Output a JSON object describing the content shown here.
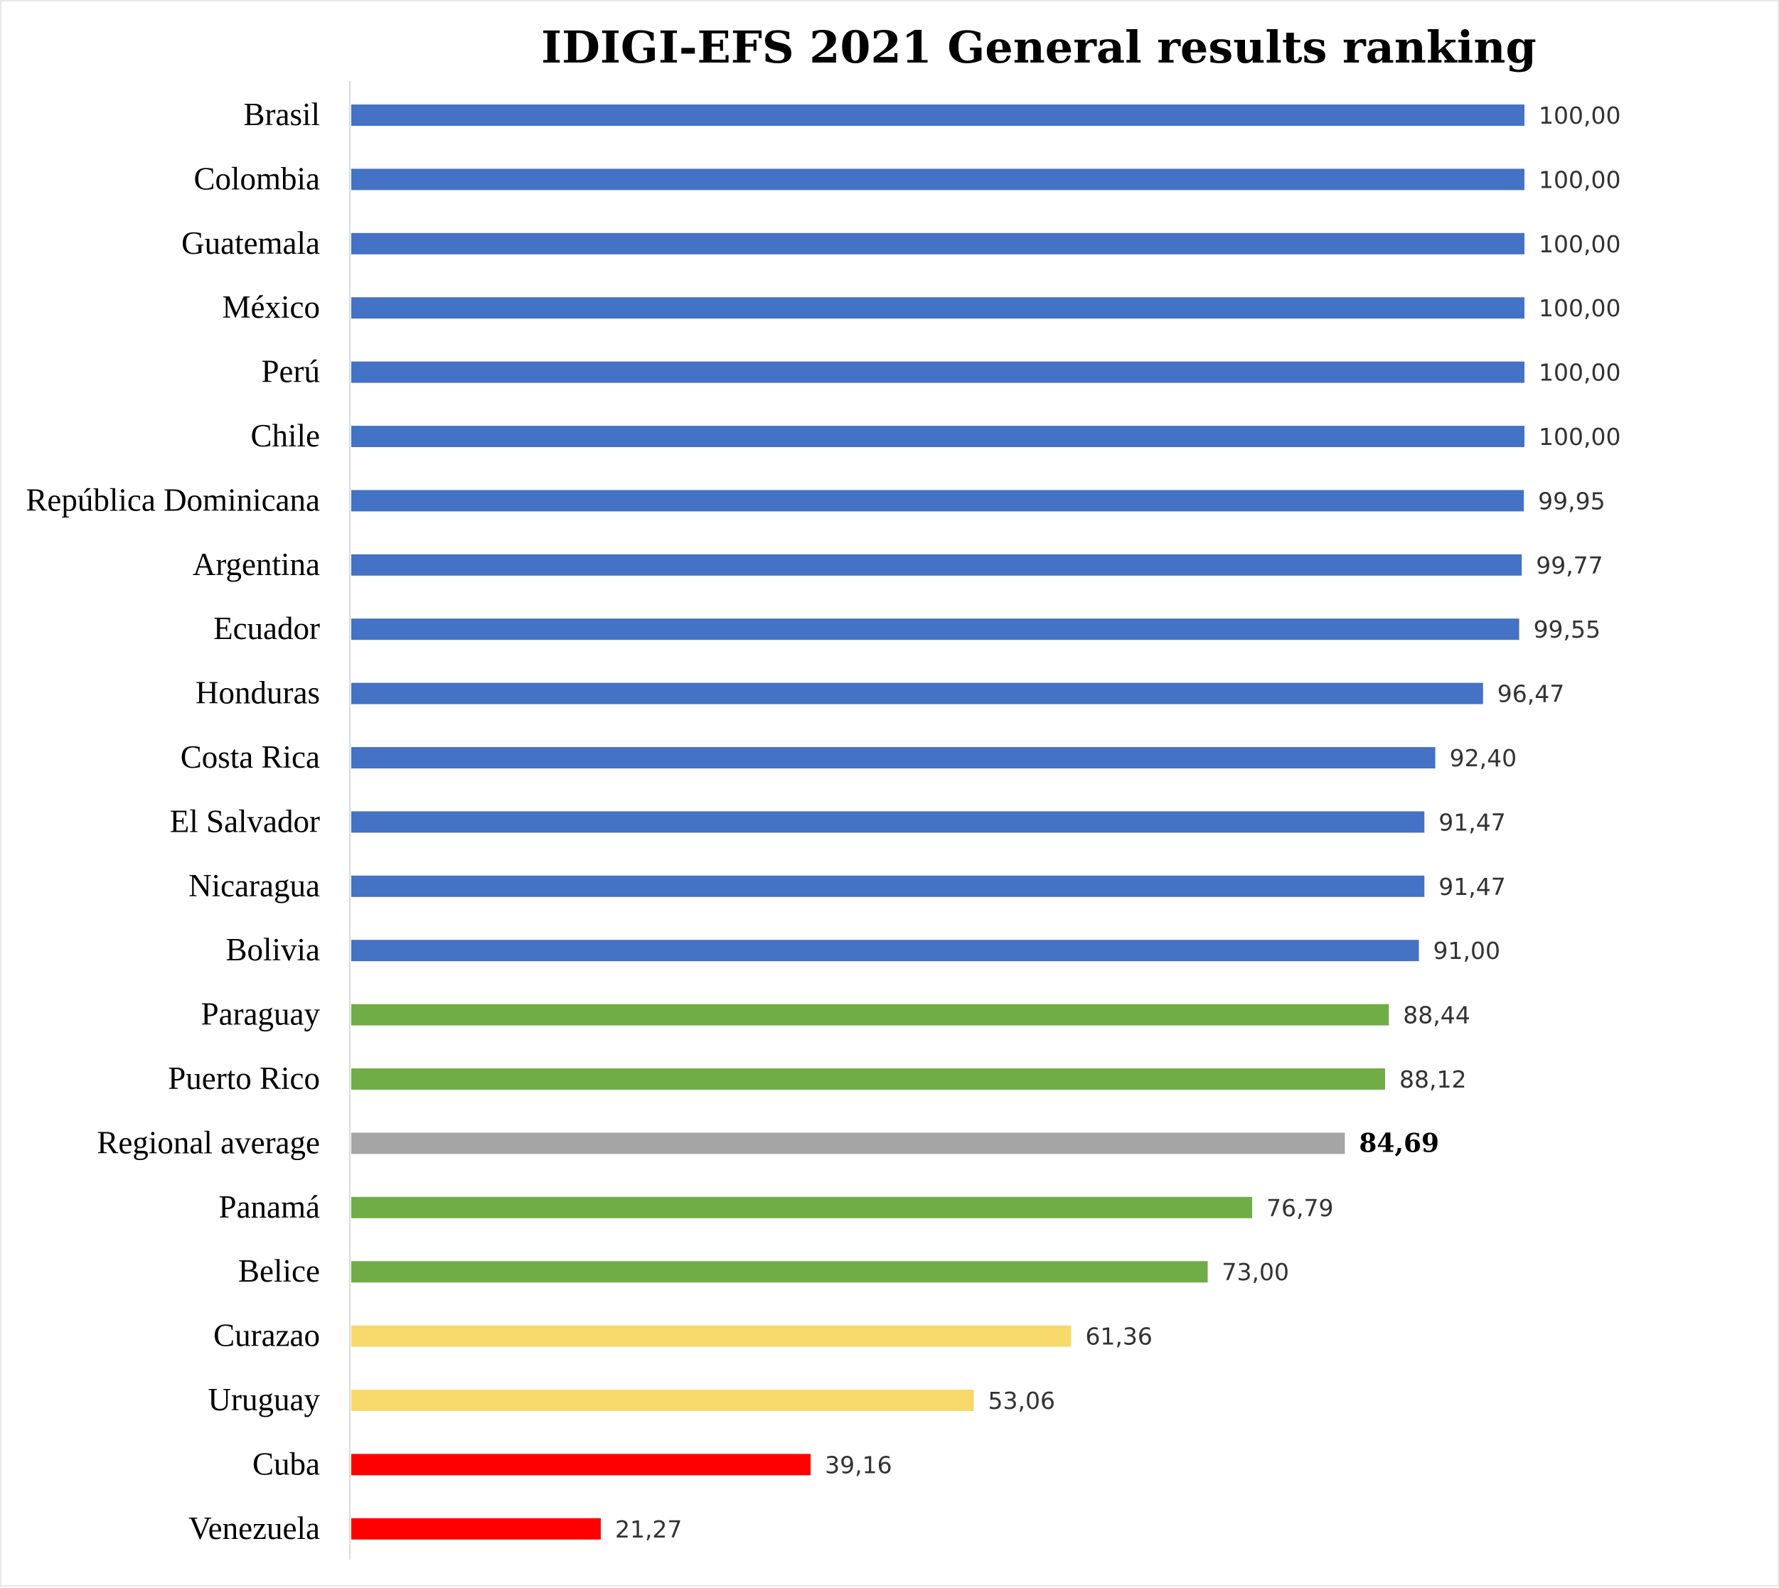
{
  "chart_data": {
    "type": "bar",
    "orientation": "horizontal",
    "title": "IDIGI-EFS 2021 General results ranking",
    "xlim": [
      0,
      100
    ],
    "grid": false,
    "legend": "none",
    "categories": [
      "Brasil",
      "Colombia",
      "Guatemala",
      "México",
      "Perú",
      "Chile",
      "República Dominicana",
      "Argentina",
      "Ecuador",
      "Honduras",
      "Costa Rica",
      "El Salvador",
      "Nicaragua",
      "Bolivia",
      "Paraguay",
      "Puerto Rico",
      "Regional average",
      "Panamá",
      "Belice",
      "Curazao",
      "Uruguay",
      "Cuba",
      "Venezuela"
    ],
    "values": [
      100.0,
      100.0,
      100.0,
      100.0,
      100.0,
      100.0,
      99.95,
      99.77,
      99.55,
      96.47,
      92.4,
      91.47,
      91.47,
      91.0,
      88.44,
      88.12,
      84.69,
      76.79,
      73.0,
      61.36,
      53.06,
      39.16,
      21.27
    ],
    "value_labels": [
      "100,00",
      "100,00",
      "100,00",
      "100,00",
      "100,00",
      "100,00",
      "99,95",
      "99,77",
      "99,55",
      "96,47",
      "92,40",
      "91,47",
      "91,47",
      "91,00",
      "88,44",
      "88,12",
      "84,69",
      "76,79",
      "73,00",
      "61,36",
      "53,06",
      "39,16",
      "21,27"
    ],
    "bar_colors": [
      "#4472C4",
      "#4472C4",
      "#4472C4",
      "#4472C4",
      "#4472C4",
      "#4472C4",
      "#4472C4",
      "#4472C4",
      "#4472C4",
      "#4472C4",
      "#4472C4",
      "#4472C4",
      "#4472C4",
      "#4472C4",
      "#70AD47",
      "#70AD47",
      "#A5A5A5",
      "#70AD47",
      "#70AD47",
      "#F7D96B",
      "#F7D96B",
      "#FF0000",
      "#FF0000"
    ],
    "highlight": "Regional average"
  }
}
